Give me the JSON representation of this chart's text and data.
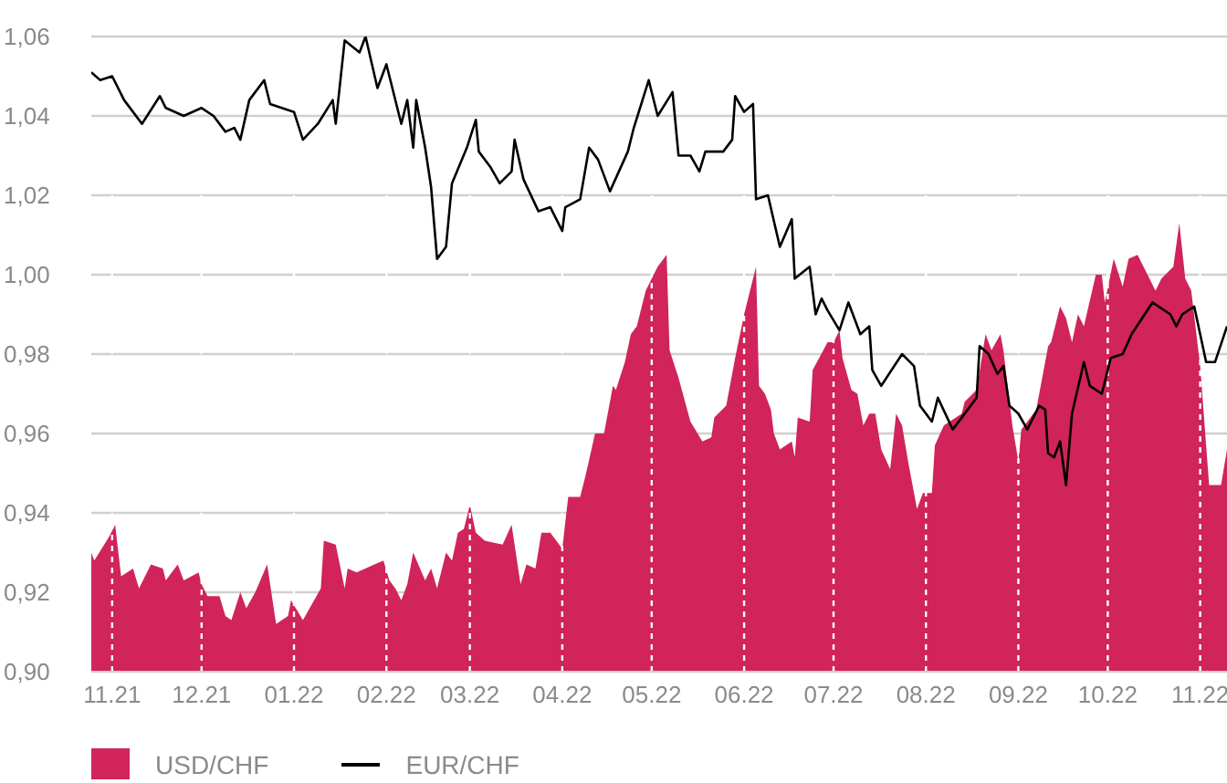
{
  "chart_data": {
    "type": "area",
    "legend": "bottom left",
    "grid": true,
    "xlim": [
      "2021-10-25",
      "2022-11-10"
    ],
    "xticks": [
      {
        "value": "2021-11-01",
        "label": "11.21"
      },
      {
        "value": "2021-12-01",
        "label": "12.21"
      },
      {
        "value": "2022-01-01",
        "label": "01.22"
      },
      {
        "value": "2022-02-01",
        "label": "02.22"
      },
      {
        "value": "2022-03-01",
        "label": "03.22"
      },
      {
        "value": "2022-04-01",
        "label": "04.22"
      },
      {
        "value": "2022-05-01",
        "label": "05.22"
      },
      {
        "value": "2022-06-01",
        "label": "06.22"
      },
      {
        "value": "2022-07-01",
        "label": "07.22"
      },
      {
        "value": "2022-08-01",
        "label": "08.22"
      },
      {
        "value": "2022-09-01",
        "label": "09.22"
      },
      {
        "value": "2022-10-01",
        "label": "10.22"
      },
      {
        "value": "2022-11-01",
        "label": "11.22"
      }
    ],
    "ylim": [
      0.9,
      1.06
    ],
    "yticks": [
      {
        "value": 0.9,
        "label": "0,90"
      },
      {
        "value": 0.92,
        "label": "0,92"
      },
      {
        "value": 0.94,
        "label": "0,94"
      },
      {
        "value": 0.96,
        "label": "0,96"
      },
      {
        "value": 0.98,
        "label": "0,98"
      },
      {
        "value": 1.0,
        "label": "1,00"
      },
      {
        "value": 1.02,
        "label": "1,02"
      },
      {
        "value": 1.04,
        "label": "1,04"
      },
      {
        "value": 1.06,
        "label": "1,06"
      }
    ],
    "series": [
      {
        "name": "USD/CHF",
        "color": "#d0245a",
        "x": [
          "2021-10-25",
          "2021-10-26",
          "2021-10-31",
          "2021-11-02",
          "2021-11-04",
          "2021-11-08",
          "2021-11-10",
          "2021-11-14",
          "2021-11-18",
          "2021-11-19",
          "2021-11-23",
          "2021-11-25",
          "2021-11-30",
          "2021-12-01",
          "2021-12-03",
          "2021-12-07",
          "2021-12-09",
          "2021-12-11",
          "2021-12-14",
          "2021-12-16",
          "2021-12-19",
          "2021-12-23",
          "2021-12-26",
          "2021-12-30",
          "2021-12-31",
          "2022-01-04",
          "2022-01-10",
          "2022-01-11",
          "2022-01-15",
          "2022-01-18",
          "2022-01-19",
          "2022-01-22",
          "2022-01-28",
          "2022-01-31",
          "2022-02-02",
          "2022-02-04",
          "2022-02-06",
          "2022-02-08",
          "2022-02-10",
          "2022-02-14",
          "2022-02-16",
          "2022-02-18",
          "2022-02-21",
          "2022-02-23",
          "2022-02-25",
          "2022-02-27",
          "2022-03-01",
          "2022-03-03",
          "2022-03-06",
          "2022-03-12",
          "2022-03-15",
          "2022-03-18",
          "2022-03-20",
          "2022-03-23",
          "2022-03-25",
          "2022-03-28",
          "2022-04-01",
          "2022-04-03",
          "2022-04-07",
          "2022-04-09",
          "2022-04-12",
          "2022-04-15",
          "2022-04-18",
          "2022-04-19",
          "2022-04-22",
          "2022-04-24",
          "2022-04-26",
          "2022-04-29",
          "2022-05-03",
          "2022-05-06",
          "2022-05-07",
          "2022-05-10",
          "2022-05-14",
          "2022-05-18",
          "2022-05-21",
          "2022-05-22",
          "2022-05-26",
          "2022-05-29",
          "2022-06-01",
          "2022-06-05",
          "2022-06-06",
          "2022-06-08",
          "2022-06-10",
          "2022-06-11",
          "2022-06-13",
          "2022-06-17",
          "2022-06-18",
          "2022-06-19",
          "2022-06-23",
          "2022-06-24",
          "2022-06-29",
          "2022-07-01",
          "2022-07-03",
          "2022-07-04",
          "2022-07-07",
          "2022-07-09",
          "2022-07-11",
          "2022-07-13",
          "2022-07-15",
          "2022-07-17",
          "2022-07-20",
          "2022-07-22",
          "2022-07-24",
          "2022-07-26",
          "2022-07-29",
          "2022-07-31",
          "2022-08-03",
          "2022-08-04",
          "2022-08-07",
          "2022-08-13",
          "2022-08-14",
          "2022-08-18",
          "2022-08-21",
          "2022-08-23",
          "2022-08-26",
          "2022-08-27",
          "2022-08-30",
          "2022-09-01",
          "2022-09-02",
          "2022-09-07",
          "2022-09-11",
          "2022-09-12",
          "2022-09-15",
          "2022-09-17",
          "2022-09-19",
          "2022-09-21",
          "2022-09-23",
          "2022-09-27",
          "2022-09-29",
          "2022-09-30",
          "2022-10-03",
          "2022-10-06",
          "2022-10-08",
          "2022-10-11",
          "2022-10-15",
          "2022-10-17",
          "2022-10-19",
          "2022-10-23",
          "2022-10-25",
          "2022-10-27",
          "2022-10-29",
          "2022-11-01",
          "2022-11-04",
          "2022-11-08",
          "2022-11-10"
        ],
        "values": [
          0.93,
          0.928,
          0.934,
          0.937,
          0.924,
          0.926,
          0.921,
          0.927,
          0.926,
          0.923,
          0.927,
          0.923,
          0.925,
          0.922,
          0.919,
          0.919,
          0.914,
          0.913,
          0.92,
          0.916,
          0.92,
          0.927,
          0.912,
          0.914,
          0.918,
          0.913,
          0.921,
          0.933,
          0.932,
          0.921,
          0.926,
          0.925,
          0.927,
          0.928,
          0.923,
          0.921,
          0.918,
          0.922,
          0.93,
          0.923,
          0.926,
          0.921,
          0.93,
          0.928,
          0.935,
          0.936,
          0.942,
          0.935,
          0.933,
          0.932,
          0.937,
          0.922,
          0.927,
          0.926,
          0.935,
          0.935,
          0.931,
          0.944,
          0.944,
          0.95,
          0.96,
          0.96,
          0.972,
          0.971,
          0.978,
          0.985,
          0.987,
          0.996,
          1.002,
          1.005,
          0.981,
          0.974,
          0.963,
          0.958,
          0.959,
          0.964,
          0.967,
          0.979,
          0.99,
          1.002,
          0.972,
          0.97,
          0.966,
          0.96,
          0.956,
          0.958,
          0.954,
          0.964,
          0.963,
          0.976,
          0.983,
          0.983,
          0.986,
          0.979,
          0.971,
          0.97,
          0.962,
          0.965,
          0.965,
          0.956,
          0.951,
          0.965,
          0.962,
          0.953,
          0.941,
          0.945,
          0.945,
          0.957,
          0.962,
          0.965,
          0.968,
          0.971,
          0.985,
          0.981,
          0.985,
          0.981,
          0.962,
          0.953,
          0.961,
          0.966,
          0.982,
          0.983,
          0.992,
          0.989,
          0.983,
          0.99,
          0.987,
          1.0,
          1.0,
          0.993,
          1.004,
          0.997,
          1.004,
          1.005,
          0.999,
          0.996,
          0.999,
          1.002,
          1.013,
          0.999,
          0.996,
          0.977,
          0.947,
          0.947,
          0.956
        ]
      },
      {
        "name": "EUR/CHF",
        "type": "line",
        "color": "#000000",
        "x": [
          "2021-10-25",
          "2021-10-28",
          "2021-11-01",
          "2021-11-05",
          "2021-11-08",
          "2021-11-11",
          "2021-11-17",
          "2021-11-19",
          "2021-11-25",
          "2021-12-01",
          "2021-12-05",
          "2021-12-09",
          "2021-12-12",
          "2021-12-14",
          "2021-12-17",
          "2021-12-22",
          "2021-12-24",
          "2022-01-01",
          "2022-01-04",
          "2022-01-09",
          "2022-01-14",
          "2022-01-15",
          "2022-01-18",
          "2022-01-23",
          "2022-01-25",
          "2022-01-29",
          "2022-02-01",
          "2022-02-06",
          "2022-02-08",
          "2022-02-10",
          "2022-02-11",
          "2022-02-14",
          "2022-02-16",
          "2022-02-18",
          "2022-02-21",
          "2022-02-23",
          "2022-02-28",
          "2022-03-03",
          "2022-03-04",
          "2022-03-08",
          "2022-03-11",
          "2022-03-15",
          "2022-03-16",
          "2022-03-19",
          "2022-03-24",
          "2022-03-28",
          "2022-04-01",
          "2022-04-02",
          "2022-04-07",
          "2022-04-10",
          "2022-04-13",
          "2022-04-17",
          "2022-04-23",
          "2022-04-25",
          "2022-04-30",
          "2022-05-03",
          "2022-05-08",
          "2022-05-10",
          "2022-05-14",
          "2022-05-17",
          "2022-05-19",
          "2022-05-25",
          "2022-05-28",
          "2022-05-29",
          "2022-06-01",
          "2022-06-04",
          "2022-06-05",
          "2022-06-09",
          "2022-06-13",
          "2022-06-17",
          "2022-06-18",
          "2022-06-23",
          "2022-06-25",
          "2022-06-27",
          "2022-06-29",
          "2022-07-03",
          "2022-07-06",
          "2022-07-10",
          "2022-07-13",
          "2022-07-14",
          "2022-07-17",
          "2022-07-24",
          "2022-07-28",
          "2022-07-30",
          "2022-08-03",
          "2022-08-05",
          "2022-08-10",
          "2022-08-13",
          "2022-08-18",
          "2022-08-19",
          "2022-08-22",
          "2022-08-25",
          "2022-08-27",
          "2022-08-29",
          "2022-09-01",
          "2022-09-04",
          "2022-09-08",
          "2022-09-10",
          "2022-09-11",
          "2022-09-13",
          "2022-09-15",
          "2022-09-17",
          "2022-09-19",
          "2022-09-23",
          "2022-09-25",
          "2022-09-29",
          "2022-10-02",
          "2022-10-06",
          "2022-10-09",
          "2022-10-16",
          "2022-10-22",
          "2022-10-24",
          "2022-10-26",
          "2022-10-30",
          "2022-11-03",
          "2022-11-06",
          "2022-11-10"
        ],
        "values": [
          1.051,
          1.049,
          1.05,
          1.044,
          1.041,
          1.038,
          1.045,
          1.042,
          1.04,
          1.042,
          1.04,
          1.036,
          1.037,
          1.034,
          1.044,
          1.049,
          1.043,
          1.041,
          1.034,
          1.038,
          1.044,
          1.038,
          1.059,
          1.056,
          1.06,
          1.047,
          1.053,
          1.038,
          1.044,
          1.032,
          1.044,
          1.032,
          1.022,
          1.004,
          1.007,
          1.023,
          1.032,
          1.039,
          1.031,
          1.027,
          1.023,
          1.026,
          1.034,
          1.024,
          1.016,
          1.017,
          1.011,
          1.017,
          1.019,
          1.032,
          1.029,
          1.021,
          1.031,
          1.037,
          1.049,
          1.04,
          1.046,
          1.03,
          1.03,
          1.026,
          1.031,
          1.031,
          1.034,
          1.045,
          1.041,
          1.043,
          1.019,
          1.02,
          1.007,
          1.014,
          0.999,
          1.002,
          0.99,
          0.994,
          0.991,
          0.986,
          0.993,
          0.985,
          0.987,
          0.976,
          0.972,
          0.98,
          0.977,
          0.967,
          0.963,
          0.969,
          0.961,
          0.964,
          0.969,
          0.982,
          0.98,
          0.975,
          0.977,
          0.967,
          0.965,
          0.961,
          0.967,
          0.966,
          0.955,
          0.954,
          0.958,
          0.947,
          0.965,
          0.978,
          0.972,
          0.97,
          0.979,
          0.98,
          0.985,
          0.993,
          0.99,
          0.987,
          0.99,
          0.992,
          0.978,
          0.978,
          0.987
        ]
      }
    ]
  }
}
